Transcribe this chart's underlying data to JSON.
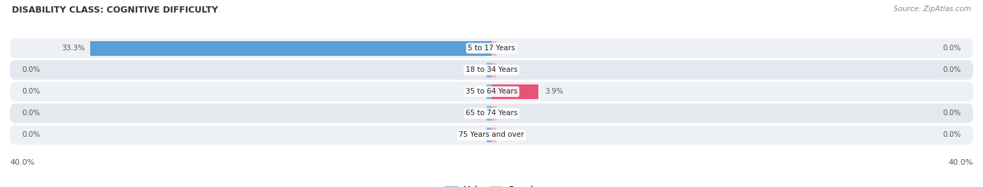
{
  "title": "DISABILITY CLASS: COGNITIVE DIFFICULTY",
  "source": "Source: ZipAtlas.com",
  "categories": [
    "5 to 17 Years",
    "18 to 34 Years",
    "35 to 64 Years",
    "65 to 74 Years",
    "75 Years and over"
  ],
  "male_values": [
    33.3,
    0.0,
    0.0,
    0.0,
    0.0
  ],
  "female_values": [
    0.0,
    0.0,
    3.9,
    0.0,
    0.0
  ],
  "male_color": "#85b8e0",
  "male_color_strong": "#5a9fd4",
  "female_color": "#f5b8c8",
  "female_color_strong": "#e8537a",
  "row_bg_even": "#edf0f5",
  "row_bg_odd": "#e4e8ef",
  "axis_max": 40.0,
  "label_color": "#555555",
  "title_color": "#333333",
  "legend_male_color": "#85b8e0",
  "legend_female_color": "#f5b8c8"
}
